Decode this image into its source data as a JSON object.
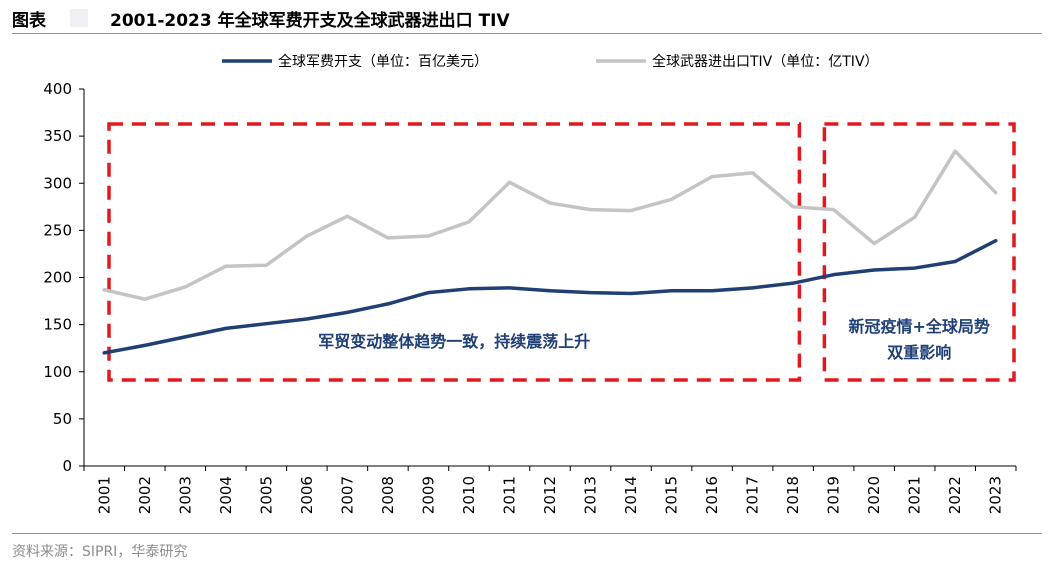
{
  "figure": {
    "label": "图表",
    "title": "2001-2023 年全球军费开支及全球武器进出口 TIV",
    "source": "资料来源：SIPRI，华泰研究"
  },
  "colors": {
    "military": "#1f3f75",
    "arms": "#c4c4c4",
    "annotation": "#e0191e",
    "axis": "#000000"
  },
  "chart_data": {
    "type": "line",
    "categories": [
      "2001",
      "2002",
      "2003",
      "2004",
      "2005",
      "2006",
      "2007",
      "2008",
      "2009",
      "2010",
      "2011",
      "2012",
      "2013",
      "2014",
      "2015",
      "2016",
      "2017",
      "2018",
      "2019",
      "2020",
      "2021",
      "2022",
      "2023"
    ],
    "ylim": [
      0,
      400
    ],
    "yticks": [
      0,
      50,
      100,
      150,
      200,
      250,
      300,
      350,
      400
    ],
    "grid": false,
    "legend_position": "top",
    "series": [
      {
        "name": "全球军费开支（单位：百亿美元）",
        "color": "#1f3f75",
        "values": [
          120,
          128,
          137,
          146,
          151,
          156,
          163,
          172,
          184,
          188,
          189,
          186,
          184,
          183,
          186,
          186,
          189,
          194,
          203,
          208,
          210,
          217,
          239
        ]
      },
      {
        "name": "全球武器进出口TIV（单位：亿TIV）",
        "color": "#c4c4c4",
        "values": [
          187,
          177,
          190,
          212,
          213,
          244,
          265,
          242,
          244,
          259,
          301,
          279,
          272,
          271,
          283,
          307,
          311,
          275,
          272,
          236,
          264,
          334,
          290
        ]
      }
    ],
    "annotations": [
      {
        "from": "2001",
        "to": "2018",
        "text": [
          "军贸变动整体趋势一致，持续震荡上升"
        ]
      },
      {
        "from": "2019",
        "to": "2023",
        "text": [
          "新冠疫情+全球局势",
          "双重影响"
        ]
      }
    ]
  }
}
